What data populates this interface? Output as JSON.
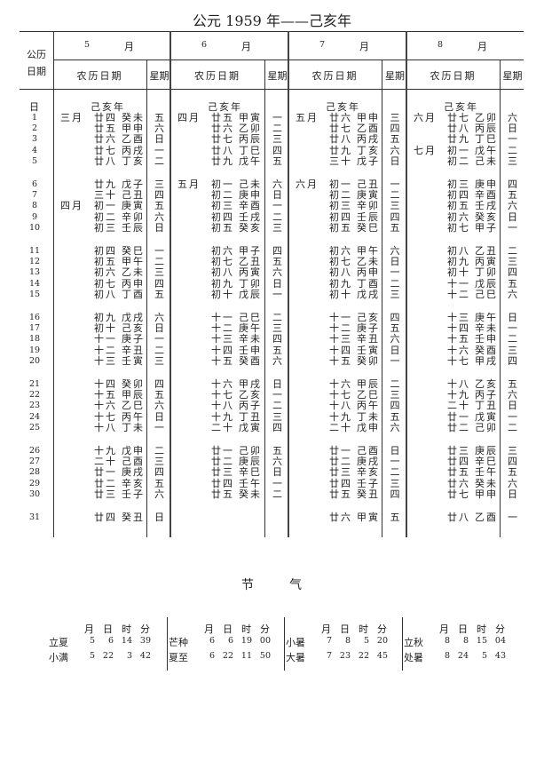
{
  "title": "公元 1959 年——己亥年",
  "header": {
    "date_col_line1": "公历",
    "date_col_line2": "日期",
    "lunar_col": "农历日期",
    "weekday_col": "星期",
    "day_header": "日"
  },
  "months": [
    {
      "number": "5",
      "unit": "月",
      "year_label": "己亥年",
      "month_marks": {
        "1": "三月",
        "8": "四月"
      },
      "days": [
        "廿四 癸未 五",
        "廿五 甲申 六",
        "廿六 乙酉 日",
        "廿七 丙戌 一",
        "廿八 丁亥 二",
        "廿九 戊子 三",
        "三十 己丑 四",
        "初一 庚寅 五",
        "初二 辛卯 六",
        "初三 壬辰 日",
        "初四 癸巳 一",
        "初五 甲午 二",
        "初六 乙未 三",
        "初七 丙申 四",
        "初八 丁酉 五",
        "初九 戊戌 六",
        "初十 己亥 日",
        "十一 庚子 一",
        "十二 辛丑 二",
        "十三 壬寅 三",
        "十四 癸卯 四",
        "十五 甲辰 五",
        "十六 乙巳 六",
        "十七 丙午 日",
        "十八 丁未 一",
        "十九 戊申 二",
        "二十 己酉 三",
        "廿一 庚戌 四",
        "廿二 辛亥 五",
        "廿三 壬子 六",
        "廿四 癸丑 日"
      ]
    },
    {
      "number": "6",
      "unit": "月",
      "year_label": "己亥年",
      "month_marks": {
        "1": "四月",
        "6": "五月"
      },
      "days": [
        "廿五 甲寅 一",
        "廿六 乙卯 二",
        "廿七 丙辰 三",
        "廿八 丁巳 四",
        "廿九 戊午 五",
        "初一 己未 六",
        "初二 庚申 日",
        "初三 辛酉 一",
        "初四 壬戌 二",
        "初五 癸亥 三",
        "初六 甲子 四",
        "初七 乙丑 五",
        "初八 丙寅 六",
        "初九 丁卯 日",
        "初十 戊辰 一",
        "十一 己巳 二",
        "十二 庚午 三",
        "十三 辛未 四",
        "十四 壬申 五",
        "十五 癸酉 六",
        "十六 甲戌 日",
        "十七 乙亥 一",
        "十八 丙子 二",
        "十九 丁丑 三",
        "二十 戊寅 四",
        "廿一 己卯 五",
        "廿二 庚辰 六",
        "廿三 辛巳 日",
        "廿四 壬午 一",
        "廿五 癸未 二"
      ]
    },
    {
      "number": "7",
      "unit": "月",
      "year_label": "己亥年",
      "month_marks": {
        "1": "五月",
        "6": "六月"
      },
      "days": [
        "廿六 甲申 三",
        "廿七 乙酉 四",
        "廿八 丙戌 五",
        "廿九 丁亥 六",
        "三十 戊子 日",
        "初一 己丑 一",
        "初二 庚寅 二",
        "初三 辛卯 三",
        "初四 壬辰 四",
        "初五 癸巳 五",
        "初六 甲午 六",
        "初七 乙未 日",
        "初八 丙申 一",
        "初九 丁酉 二",
        "初十 戊戌 三",
        "十一 己亥 四",
        "十二 庚子 五",
        "十三 辛丑 六",
        "十四 壬寅 日",
        "十五 癸卯 一",
        "十六 甲辰 二",
        "十七 乙巳 三",
        "十八 丙午 四",
        "十九 丁未 五",
        "二十 戊申 六",
        "廿一 己酉 日",
        "廿二 庚戌 一",
        "廿三 辛亥 二",
        "廿四 壬子 三",
        "廿五 癸丑 四",
        "廿六 甲寅 五"
      ]
    },
    {
      "number": "8",
      "unit": "月",
      "year_label": "己亥年",
      "month_marks": {
        "1": "六月",
        "4": "七月"
      },
      "days": [
        "廿七 乙卯 六",
        "廿八 丙辰 日",
        "廿九 丁巳 一",
        "初一 戊午 二",
        "初二 己未 三",
        "初三 庚申 四",
        "初四 辛酉 五",
        "初五 壬戌 六",
        "初六 癸亥 日",
        "初七 甲子 一",
        "初八 乙丑 二",
        "初九 丙寅 三",
        "初十 丁卯 四",
        "十一 戊辰 五",
        "十二 己巳 六",
        "十三 庚午 日",
        "十四 辛未 一",
        "十五 壬申 二",
        "十六 癸酉 三",
        "十七 甲戌 四",
        "十八 乙亥 五",
        "十九 丙子 六",
        "二十 丁丑 日",
        "廿一 戊寅 一",
        "廿二 己卯 二",
        "廿三 庚辰 三",
        "廿四 辛巳 四",
        "廿五 壬午 五",
        "廿六 癸未 六",
        "廿七 甲申 日",
        "廿八 乙酉 一"
      ]
    }
  ],
  "solar_terms": {
    "title_1": "节",
    "title_2": "气",
    "col_headers": [
      "月",
      "日",
      "时",
      "分"
    ],
    "groups": [
      [
        {
          "name": "立夏",
          "v": [
            "5",
            "6",
            "14",
            "39"
          ]
        },
        {
          "name": "小满",
          "v": [
            "5",
            "22",
            "3",
            "42"
          ]
        }
      ],
      [
        {
          "name": "芒种",
          "v": [
            "6",
            "6",
            "19",
            "00"
          ]
        },
        {
          "name": "夏至",
          "v": [
            "6",
            "22",
            "11",
            "50"
          ]
        }
      ],
      [
        {
          "name": "小暑",
          "v": [
            "7",
            "8",
            "5",
            "20"
          ]
        },
        {
          "name": "大暑",
          "v": [
            "7",
            "23",
            "22",
            "45"
          ]
        }
      ],
      [
        {
          "name": "立秋",
          "v": [
            "8",
            "8",
            "15",
            "04"
          ]
        },
        {
          "name": "处暑",
          "v": [
            "8",
            "24",
            "5",
            "43"
          ]
        }
      ]
    ]
  }
}
